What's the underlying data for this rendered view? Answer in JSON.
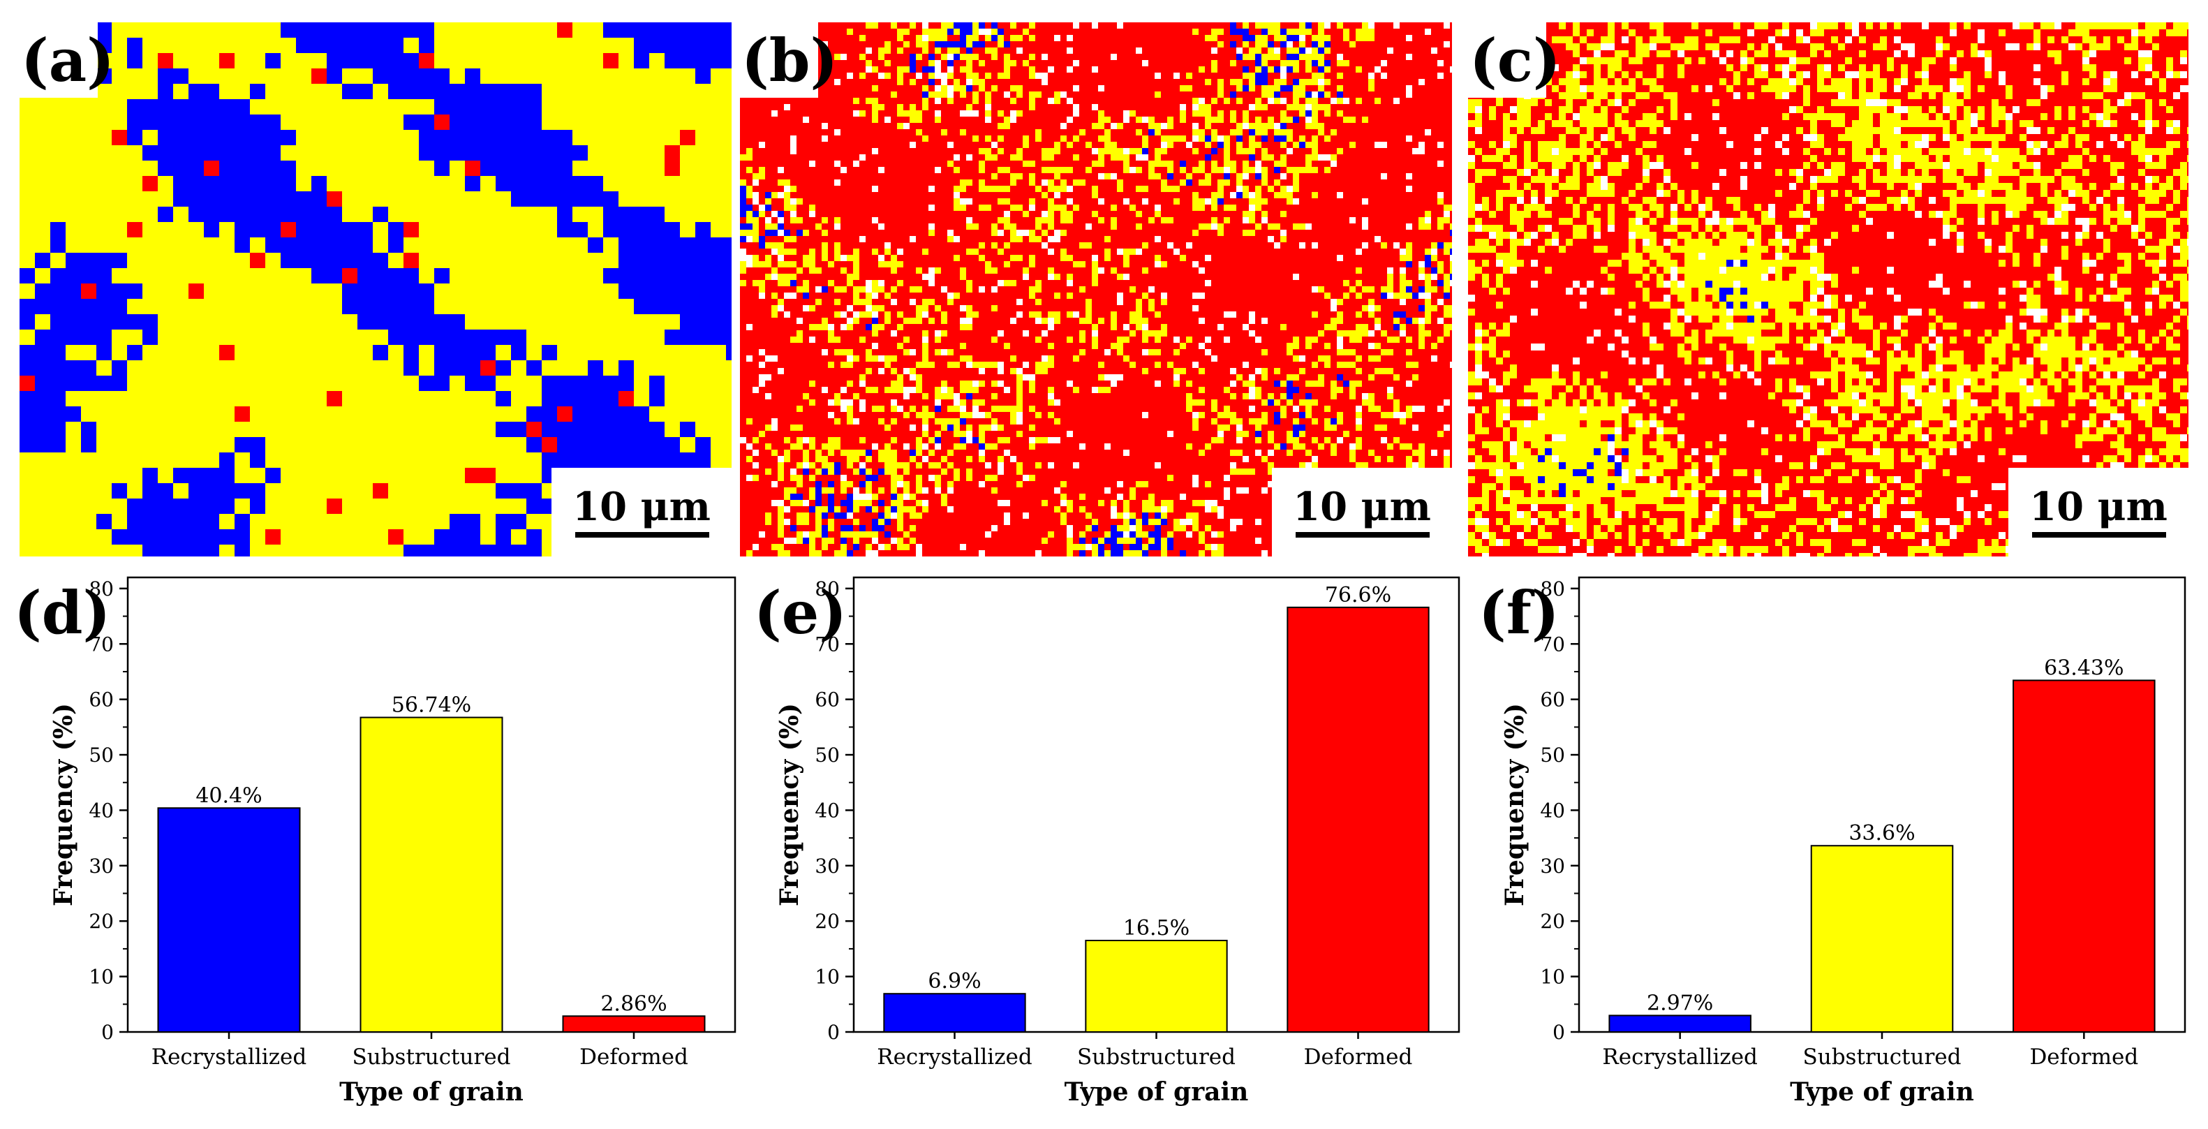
{
  "colors": {
    "recrystallized": "#0000ff",
    "substructured": "#ffff00",
    "deformed": "#ff0000",
    "background": "#ffffff"
  },
  "maps": [
    {
      "label": "(a)",
      "scale_bar": "10 μm",
      "fractions": [
        40.4,
        56.74,
        2.86
      ]
    },
    {
      "label": "(b)",
      "scale_bar": "10 μm",
      "fractions": [
        6.9,
        16.5,
        76.6
      ]
    },
    {
      "label": "(c)",
      "scale_bar": "10 μm",
      "fractions": [
        2.97,
        33.6,
        63.43
      ]
    }
  ],
  "chart_data": [
    {
      "type": "bar",
      "panel": "(d)",
      "categories": [
        "Recrystallized",
        "Substructured",
        "Deformed"
      ],
      "category_labels": [
        "Recrystallized",
        "Substructured",
        "Deformed"
      ],
      "values": [
        40.4,
        56.74,
        2.86
      ],
      "value_labels": [
        "40.4%",
        "56.74%",
        "2.86%"
      ],
      "xlabel": "Type of grain",
      "ylabel": "Frequency (%)",
      "ylim": [
        0,
        82
      ],
      "yticks": [
        0,
        10,
        20,
        30,
        40,
        50,
        60,
        70,
        80
      ]
    },
    {
      "type": "bar",
      "panel": "(e)",
      "categories": [
        "Recrystallized",
        "Substructured",
        "Deformed"
      ],
      "category_labels": [
        "Recrystallized",
        "Substructured",
        "Deformed"
      ],
      "values": [
        6.9,
        16.5,
        76.6
      ],
      "value_labels": [
        "6.9%",
        "16.5%",
        "76.6%"
      ],
      "xlabel": "Type of grain",
      "ylabel": "Frequency (%)",
      "ylim": [
        0,
        82
      ],
      "yticks": [
        0,
        10,
        20,
        30,
        40,
        50,
        60,
        70,
        80
      ]
    },
    {
      "type": "bar",
      "panel": "(f)",
      "categories": [
        "Recrystallized",
        "Substructured",
        "Deformed"
      ],
      "category_labels": [
        "Recrystallized",
        "Substructured",
        "Deformed"
      ],
      "values": [
        2.97,
        33.6,
        63.43
      ],
      "value_labels": [
        "2.97%",
        "33.6%",
        "63.43%"
      ],
      "xlabel": "Type of grain",
      "ylabel": "Frequency (%)",
      "ylim": [
        0,
        82
      ],
      "yticks": [
        0,
        10,
        20,
        30,
        40,
        50,
        60,
        70,
        80
      ]
    }
  ]
}
